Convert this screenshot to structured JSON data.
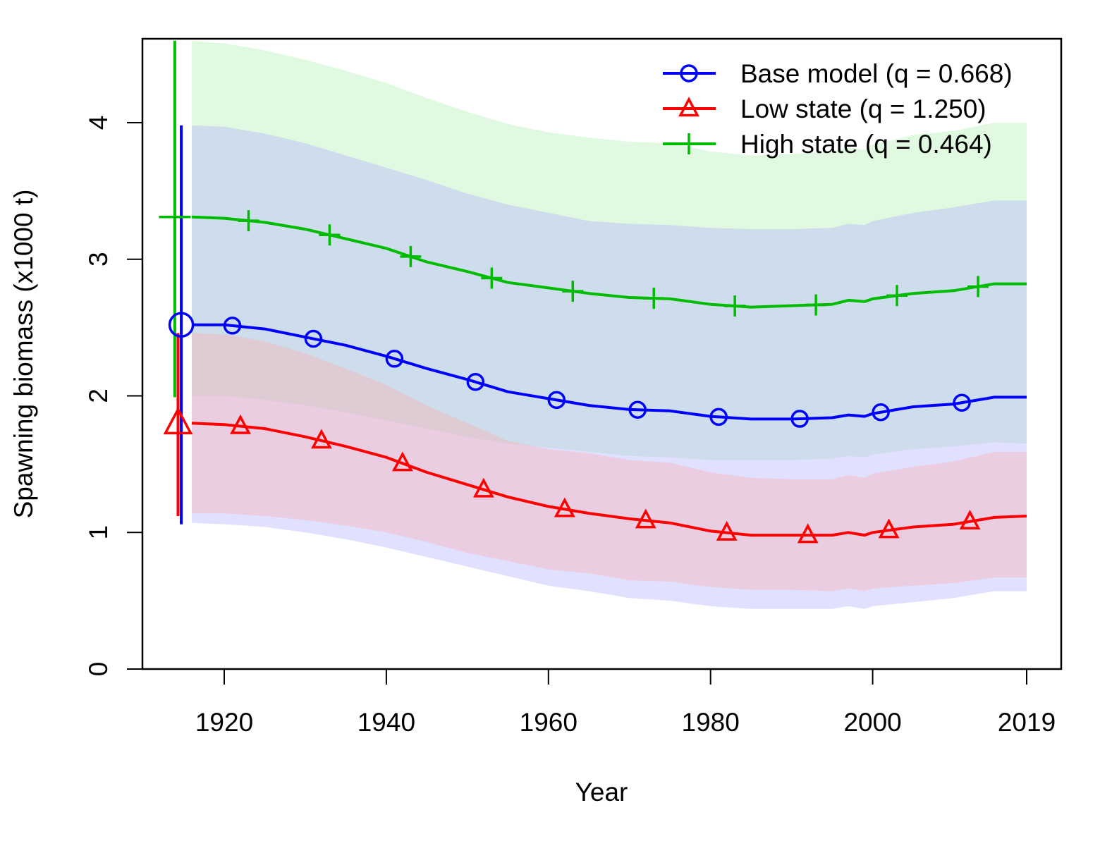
{
  "chart_data": {
    "type": "line",
    "title": "",
    "xlabel": "Year",
    "ylabel": "Spawning biomass (x1000 t)",
    "xlim": [
      1910,
      2024
    ],
    "ylim": [
      0,
      4.6
    ],
    "x_ticks": [
      1920,
      1940,
      1960,
      1980,
      2000,
      2019
    ],
    "y_ticks": [
      0,
      1,
      2,
      3,
      4
    ],
    "grid": false,
    "legend_position": "top-right",
    "colors": {
      "base": "#0000ff",
      "low": "#ff0000",
      "high": "#00bb00",
      "base_band": "#aaaaff",
      "low_band": "#ffaaaa",
      "high_band": "#aaeeaa"
    },
    "series": [
      {
        "name": "Base model (q = 0.668)",
        "key": "base",
        "marker": "circle",
        "virgin": {
          "x": 1914.7,
          "value": 2.52,
          "lo": 1.07,
          "hi": 3.98
        },
        "x": [
          1916,
          1920,
          1925,
          1930,
          1935,
          1940,
          1945,
          1950,
          1955,
          1960,
          1965,
          1970,
          1975,
          1980,
          1985,
          1990,
          1995,
          1997,
          1999,
          2000,
          2005,
          2010,
          2015,
          2019
        ],
        "values": [
          2.52,
          2.52,
          2.49,
          2.43,
          2.37,
          2.29,
          2.2,
          2.12,
          2.03,
          1.98,
          1.93,
          1.9,
          1.89,
          1.85,
          1.83,
          1.83,
          1.84,
          1.86,
          1.85,
          1.87,
          1.92,
          1.94,
          1.99,
          1.99
        ],
        "lower": [
          1.07,
          1.06,
          1.04,
          1.0,
          0.95,
          0.89,
          0.82,
          0.75,
          0.68,
          0.61,
          0.57,
          0.52,
          0.5,
          0.46,
          0.44,
          0.44,
          0.44,
          0.46,
          0.44,
          0.46,
          0.49,
          0.52,
          0.57,
          0.57
        ],
        "upper": [
          3.98,
          3.97,
          3.92,
          3.85,
          3.76,
          3.67,
          3.58,
          3.48,
          3.4,
          3.34,
          3.28,
          3.26,
          3.25,
          3.23,
          3.22,
          3.22,
          3.23,
          3.26,
          3.25,
          3.28,
          3.34,
          3.38,
          3.43,
          3.43
        ],
        "marker_x": [
          1921,
          1931,
          1941,
          1951,
          1961,
          1971,
          1981,
          1991,
          2001,
          2011
        ]
      },
      {
        "name": "Low state (q = 1.250)",
        "key": "low",
        "marker": "triangle",
        "virgin": {
          "x": 1914.3,
          "value": 1.8,
          "lo": 1.13,
          "hi": 2.46
        },
        "x": [
          1916,
          1920,
          1925,
          1930,
          1935,
          1940,
          1945,
          1950,
          1955,
          1960,
          1965,
          1970,
          1975,
          1980,
          1985,
          1990,
          1995,
          1997,
          1999,
          2000,
          2005,
          2010,
          2015,
          2019
        ],
        "values": [
          1.8,
          1.79,
          1.76,
          1.7,
          1.63,
          1.55,
          1.44,
          1.35,
          1.26,
          1.19,
          1.14,
          1.1,
          1.07,
          1.01,
          0.98,
          0.98,
          0.98,
          1.0,
          0.98,
          1.0,
          1.04,
          1.06,
          1.11,
          1.12
        ],
        "lower": [
          1.14,
          1.14,
          1.12,
          1.09,
          1.05,
          1.0,
          0.93,
          0.85,
          0.79,
          0.73,
          0.7,
          0.65,
          0.64,
          0.6,
          0.58,
          0.58,
          0.57,
          0.59,
          0.57,
          0.59,
          0.61,
          0.63,
          0.67,
          0.67
        ],
        "upper": [
          2.46,
          2.45,
          2.4,
          2.31,
          2.2,
          2.08,
          1.93,
          1.8,
          1.67,
          1.61,
          1.58,
          1.53,
          1.51,
          1.44,
          1.4,
          1.39,
          1.39,
          1.42,
          1.4,
          1.43,
          1.48,
          1.52,
          1.59,
          1.59
        ],
        "marker_x": [
          1922,
          1932,
          1942,
          1952,
          1962,
          1972,
          1982,
          1992,
          2002,
          2012
        ]
      },
      {
        "name": "High state (q = 0.464)",
        "key": "high",
        "marker": "plus",
        "virgin": {
          "x": 1913.9,
          "value": 3.31,
          "lo": 2.0,
          "hi": 4.6
        },
        "x": [
          1916,
          1920,
          1925,
          1930,
          1935,
          1940,
          1945,
          1950,
          1955,
          1960,
          1965,
          1970,
          1975,
          1980,
          1985,
          1990,
          1995,
          1997,
          1999,
          2000,
          2005,
          2010,
          2015,
          2019
        ],
        "values": [
          3.31,
          3.3,
          3.27,
          3.22,
          3.15,
          3.08,
          2.98,
          2.91,
          2.83,
          2.79,
          2.75,
          2.72,
          2.71,
          2.67,
          2.65,
          2.66,
          2.67,
          2.7,
          2.69,
          2.71,
          2.75,
          2.77,
          2.82,
          2.82
        ],
        "lower": [
          2.0,
          2.0,
          1.97,
          1.93,
          1.88,
          1.82,
          1.76,
          1.7,
          1.65,
          1.62,
          1.59,
          1.56,
          1.55,
          1.53,
          1.53,
          1.53,
          1.54,
          1.56,
          1.55,
          1.57,
          1.61,
          1.63,
          1.66,
          1.65
        ],
        "upper": [
          4.6,
          4.58,
          4.53,
          4.46,
          4.38,
          4.29,
          4.18,
          4.08,
          3.99,
          3.93,
          3.89,
          3.86,
          3.85,
          3.79,
          3.76,
          3.77,
          3.79,
          3.82,
          3.8,
          3.84,
          3.91,
          3.94,
          4.0,
          4.0
        ],
        "marker_x": [
          1923,
          1933,
          1943,
          1953,
          1963,
          1973,
          1983,
          1993,
          2003,
          2013
        ]
      }
    ]
  }
}
